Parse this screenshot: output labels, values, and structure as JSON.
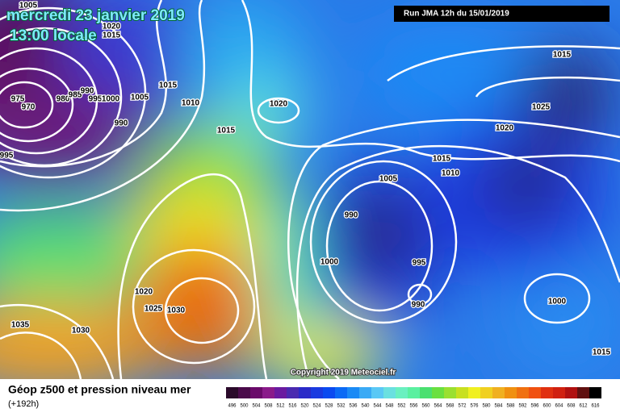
{
  "header": {
    "date": "mercredi 23 janvier 2019",
    "time": "13:00 locale",
    "run": "Run JMA 12h du 15/01/2019"
  },
  "isobar_labels": [
    "1005",
    "1020",
    "1015",
    "975",
    "970",
    "980",
    "985",
    "990",
    "995",
    "1000",
    "1005",
    "1015",
    "1010",
    "990",
    "1020",
    "1015",
    "995",
    "1015",
    "1025",
    "1020",
    "1015",
    "1010",
    "1005",
    "990",
    "1000",
    "995",
    "990",
    "1000",
    "1020",
    "1025",
    "1030",
    "1035",
    "1030",
    "1015"
  ],
  "copyright": "Copyright 2019 Meteociel.fr",
  "footer": {
    "title": "Géop z500 et pression niveau mer",
    "lead": "(+192h)"
  },
  "scale": {
    "labels": [
      496,
      500,
      504,
      508,
      512,
      516,
      520,
      524,
      528,
      532,
      536,
      540,
      544,
      548,
      552,
      556,
      560,
      564,
      568,
      572,
      576,
      580,
      584,
      588,
      592,
      596,
      600,
      604,
      608,
      612,
      616
    ],
    "colors": [
      "#2a0a2a",
      "#4a0a4a",
      "#6a0a6a",
      "#8a1a8a",
      "#6a1aa0",
      "#4a2ab0",
      "#2a2ac8",
      "#1a3ae0",
      "#0a4af0",
      "#0a6af5",
      "#1a8af5",
      "#3aaaf5",
      "#5ac8f5",
      "#6ae0e0",
      "#6af0c0",
      "#5af0a0",
      "#4ae070",
      "#6ae040",
      "#9ae030",
      "#c8e020",
      "#f0f020",
      "#f0d020",
      "#f0b020",
      "#f09010",
      "#f07010",
      "#f05010",
      "#e03010",
      "#d02010",
      "#b01010",
      "#601010",
      "#000000"
    ]
  }
}
